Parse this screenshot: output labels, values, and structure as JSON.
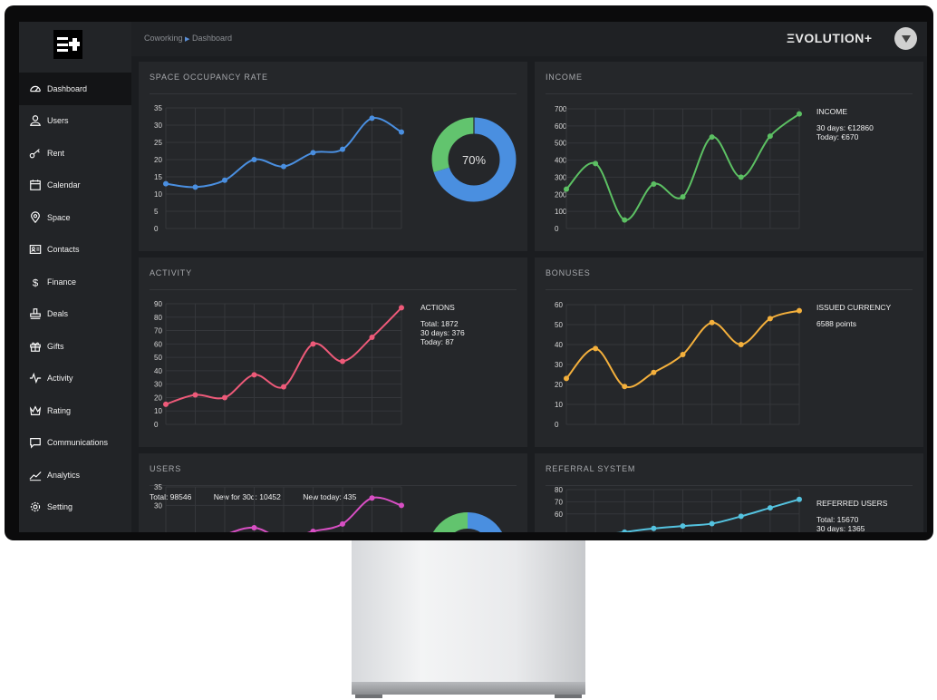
{
  "sidebar": {
    "items": [
      {
        "label": "Dashboard",
        "icon": "dashboard-icon"
      },
      {
        "label": "Users",
        "icon": "user-icon"
      },
      {
        "label": "Rent",
        "icon": "key-icon"
      },
      {
        "label": "Calendar",
        "icon": "calendar-icon"
      },
      {
        "label": "Space",
        "icon": "location-pin-icon"
      },
      {
        "label": "Contacts",
        "icon": "contact-card-icon"
      },
      {
        "label": "Finance",
        "icon": "dollar-icon"
      },
      {
        "label": "Deals",
        "icon": "stamp-icon"
      },
      {
        "label": "Gifts",
        "icon": "gift-icon"
      },
      {
        "label": "Activity",
        "icon": "pulse-icon"
      },
      {
        "label": "Rating",
        "icon": "crown-icon"
      },
      {
        "label": "Communications",
        "icon": "chat-icon"
      },
      {
        "label": "Analytics",
        "icon": "trend-icon"
      },
      {
        "label": "Setting",
        "icon": "gear-icon"
      }
    ]
  },
  "header": {
    "breadcrumb": [
      "Coworking",
      "Dashboard"
    ],
    "separator": "▶",
    "brand": "ΞVOLUTION+"
  },
  "panels": {
    "occupancy": {
      "title": "SPACE OCCUPANCY RATE",
      "donut_label": "70%"
    },
    "income": {
      "title": "INCOME",
      "info_head": "INCOME",
      "info_lines": [
        "30 days: €12860",
        "Today: €670"
      ]
    },
    "activity": {
      "title": "ACTIVITY",
      "info_head": "ACTIONS",
      "info_lines": [
        "Total: 1872",
        "30 days: 376",
        "Today: 87"
      ]
    },
    "bonuses": {
      "title": "BONUSES",
      "info_head": "ISSUED CURRENCY",
      "info_lines": [
        "6588 points"
      ]
    },
    "users": {
      "title": "USERS",
      "stats": [
        "Total: 98546",
        "New for 30d: 10452",
        "New today: 435"
      ]
    },
    "referral": {
      "title": "REFERRAL SYSTEM",
      "info_head": "REFERRED USERS",
      "info_lines": [
        "Total: 15670",
        "30 days: 1365"
      ]
    }
  },
  "chart_data": [
    {
      "type": "line",
      "name": "occupancy",
      "y": [
        13,
        12,
        14,
        20,
        18,
        22,
        23,
        32,
        28
      ],
      "ylim": [
        0,
        35
      ],
      "yticks": [
        0,
        5,
        10,
        15,
        20,
        25,
        30,
        35
      ],
      "color": "#4a8fe0"
    },
    {
      "type": "pie",
      "name": "occupancy-donut",
      "values": [
        70,
        30
      ],
      "colors": [
        "#4a8fe0",
        "#62c46e"
      ]
    },
    {
      "type": "line",
      "name": "income",
      "y": [
        230,
        380,
        50,
        260,
        185,
        535,
        300,
        540,
        670
      ],
      "ylim": [
        0,
        700
      ],
      "yticks": [
        0,
        100,
        200,
        300,
        400,
        500,
        600,
        700
      ],
      "color": "#5cc063"
    },
    {
      "type": "line",
      "name": "activity",
      "y": [
        15,
        22,
        20,
        37,
        28,
        60,
        47,
        65,
        87
      ],
      "ylim": [
        0,
        90
      ],
      "yticks": [
        0,
        10,
        20,
        30,
        40,
        50,
        60,
        70,
        80,
        90
      ],
      "color": "#ee5a79"
    },
    {
      "type": "line",
      "name": "bonuses",
      "y": [
        23,
        38,
        19,
        26,
        35,
        51,
        40,
        53,
        57
      ],
      "ylim": [
        0,
        60
      ],
      "yticks": [
        0,
        10,
        20,
        30,
        40,
        50,
        60
      ],
      "color": "#f4b03c"
    },
    {
      "type": "line",
      "name": "users",
      "y": [
        20,
        18,
        22,
        24,
        21,
        23,
        25,
        32,
        30
      ],
      "ylim": [
        0,
        35
      ],
      "yticks": [
        30,
        35
      ],
      "color": "#d84fc4"
    },
    {
      "type": "line",
      "name": "referral",
      "y": [
        40,
        42,
        45,
        48,
        50,
        52,
        58,
        65,
        72
      ],
      "ylim": [
        0,
        80
      ],
      "yticks": [
        60,
        70,
        80
      ],
      "color": "#54c3e0"
    }
  ]
}
